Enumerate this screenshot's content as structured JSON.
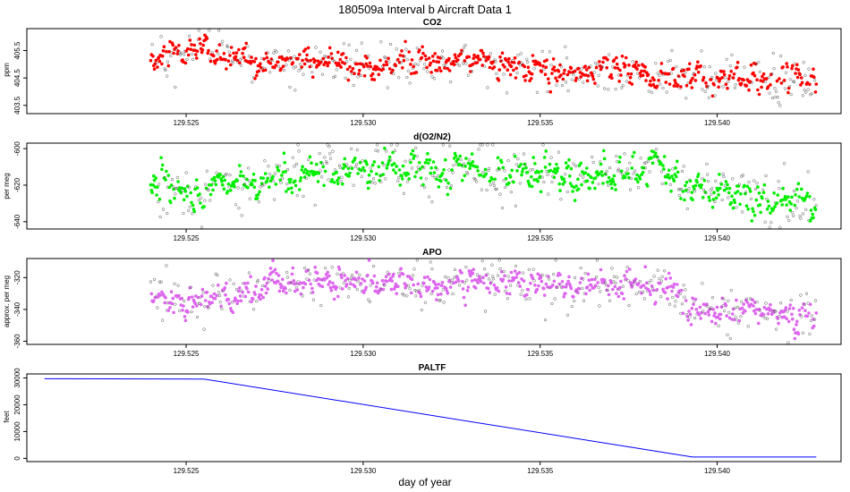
{
  "figure": {
    "title": "180509a   Interval b Aircraft Data 1",
    "xlabel": "day of year"
  },
  "chart_data": [
    {
      "type": "scatter",
      "title": "CO2",
      "ylabel": "ppm",
      "color": "#ff0000",
      "xlim": [
        129.5205,
        129.5435
      ],
      "ylim": [
        403.2,
        406.3
      ],
      "x_ticks": [
        129.525,
        129.53,
        129.535,
        129.54
      ],
      "x_tick_labels": [
        "129.525",
        "129.530",
        "129.535",
        "129.540"
      ],
      "y_ticks": [
        403.5,
        404.5,
        405.5
      ],
      "y_tick_labels": [
        "403.5",
        "404.5",
        "405.5"
      ],
      "x_range": [
        129.524,
        129.5428
      ],
      "trend": [
        [
          129.524,
          405.2
        ],
        [
          129.5255,
          405.6
        ],
        [
          129.527,
          405.1
        ],
        [
          129.53,
          405.0
        ],
        [
          129.533,
          405.1
        ],
        [
          129.535,
          404.8
        ],
        [
          129.538,
          404.7
        ],
        [
          129.5395,
          404.4
        ],
        [
          129.5428,
          404.45
        ]
      ],
      "noise": 0.35,
      "n_points": 900
    },
    {
      "type": "scatter",
      "title": "d(O2/N2)",
      "ylabel": "per meg",
      "color": "#00ee00",
      "xlim": [
        129.5205,
        129.5435
      ],
      "ylim": [
        -644,
        -597
      ],
      "x_ticks": [
        129.525,
        129.53,
        129.535,
        129.54
      ],
      "x_tick_labels": [
        "129.525",
        "129.530",
        "129.535",
        "129.540"
      ],
      "y_ticks": [
        -640,
        -620,
        -600
      ],
      "y_tick_labels": [
        "-640",
        "-620",
        "-600"
      ],
      "x_range": [
        129.524,
        129.5428
      ],
      "trend": [
        [
          129.524,
          -620
        ],
        [
          129.5255,
          -625
        ],
        [
          129.527,
          -617
        ],
        [
          129.529,
          -610
        ],
        [
          129.531,
          -611
        ],
        [
          129.534,
          -612
        ],
        [
          129.536,
          -615
        ],
        [
          129.5385,
          -610
        ],
        [
          129.539,
          -620
        ],
        [
          129.5428,
          -632
        ]
      ],
      "noise": 6,
      "n_points": 900
    },
    {
      "type": "scatter",
      "title": "APO",
      "ylabel": "approx. per meg",
      "color": "#dd66ee",
      "xlim": [
        129.5205,
        129.5435
      ],
      "ylim": [
        -362,
        -308
      ],
      "x_ticks": [
        129.525,
        129.53,
        129.535,
        129.54
      ],
      "x_tick_labels": [
        "129.525",
        "129.530",
        "129.535",
        "129.540"
      ],
      "y_ticks": [
        -360,
        -340,
        -320
      ],
      "y_tick_labels": [
        "-360",
        "-340",
        "-320"
      ],
      "x_range": [
        129.524,
        129.5428
      ],
      "trend": [
        [
          129.524,
          -332
        ],
        [
          129.5255,
          -335
        ],
        [
          129.527,
          -327
        ],
        [
          129.529,
          -322
        ],
        [
          129.531,
          -324
        ],
        [
          129.534,
          -322
        ],
        [
          129.536,
          -327
        ],
        [
          129.5385,
          -322
        ],
        [
          129.539,
          -338
        ],
        [
          129.5428,
          -345
        ]
      ],
      "noise": 6,
      "n_points": 900
    },
    {
      "type": "line",
      "title": "PALTF",
      "ylabel": "feet",
      "color": "#0000ff",
      "xlim": [
        129.5205,
        129.5435
      ],
      "ylim": [
        -1200,
        31500
      ],
      "x_ticks": [
        129.525,
        129.53,
        129.535,
        129.54
      ],
      "x_tick_labels": [
        "129.525",
        "129.530",
        "129.535",
        "129.540"
      ],
      "y_ticks": [
        0,
        10000,
        20000,
        30000
      ],
      "y_tick_labels": [
        "0",
        "10000",
        "20000",
        "30000"
      ],
      "x": [
        129.521,
        129.5255,
        129.5393,
        129.5428
      ],
      "y": [
        29700,
        29600,
        500,
        500
      ]
    }
  ]
}
